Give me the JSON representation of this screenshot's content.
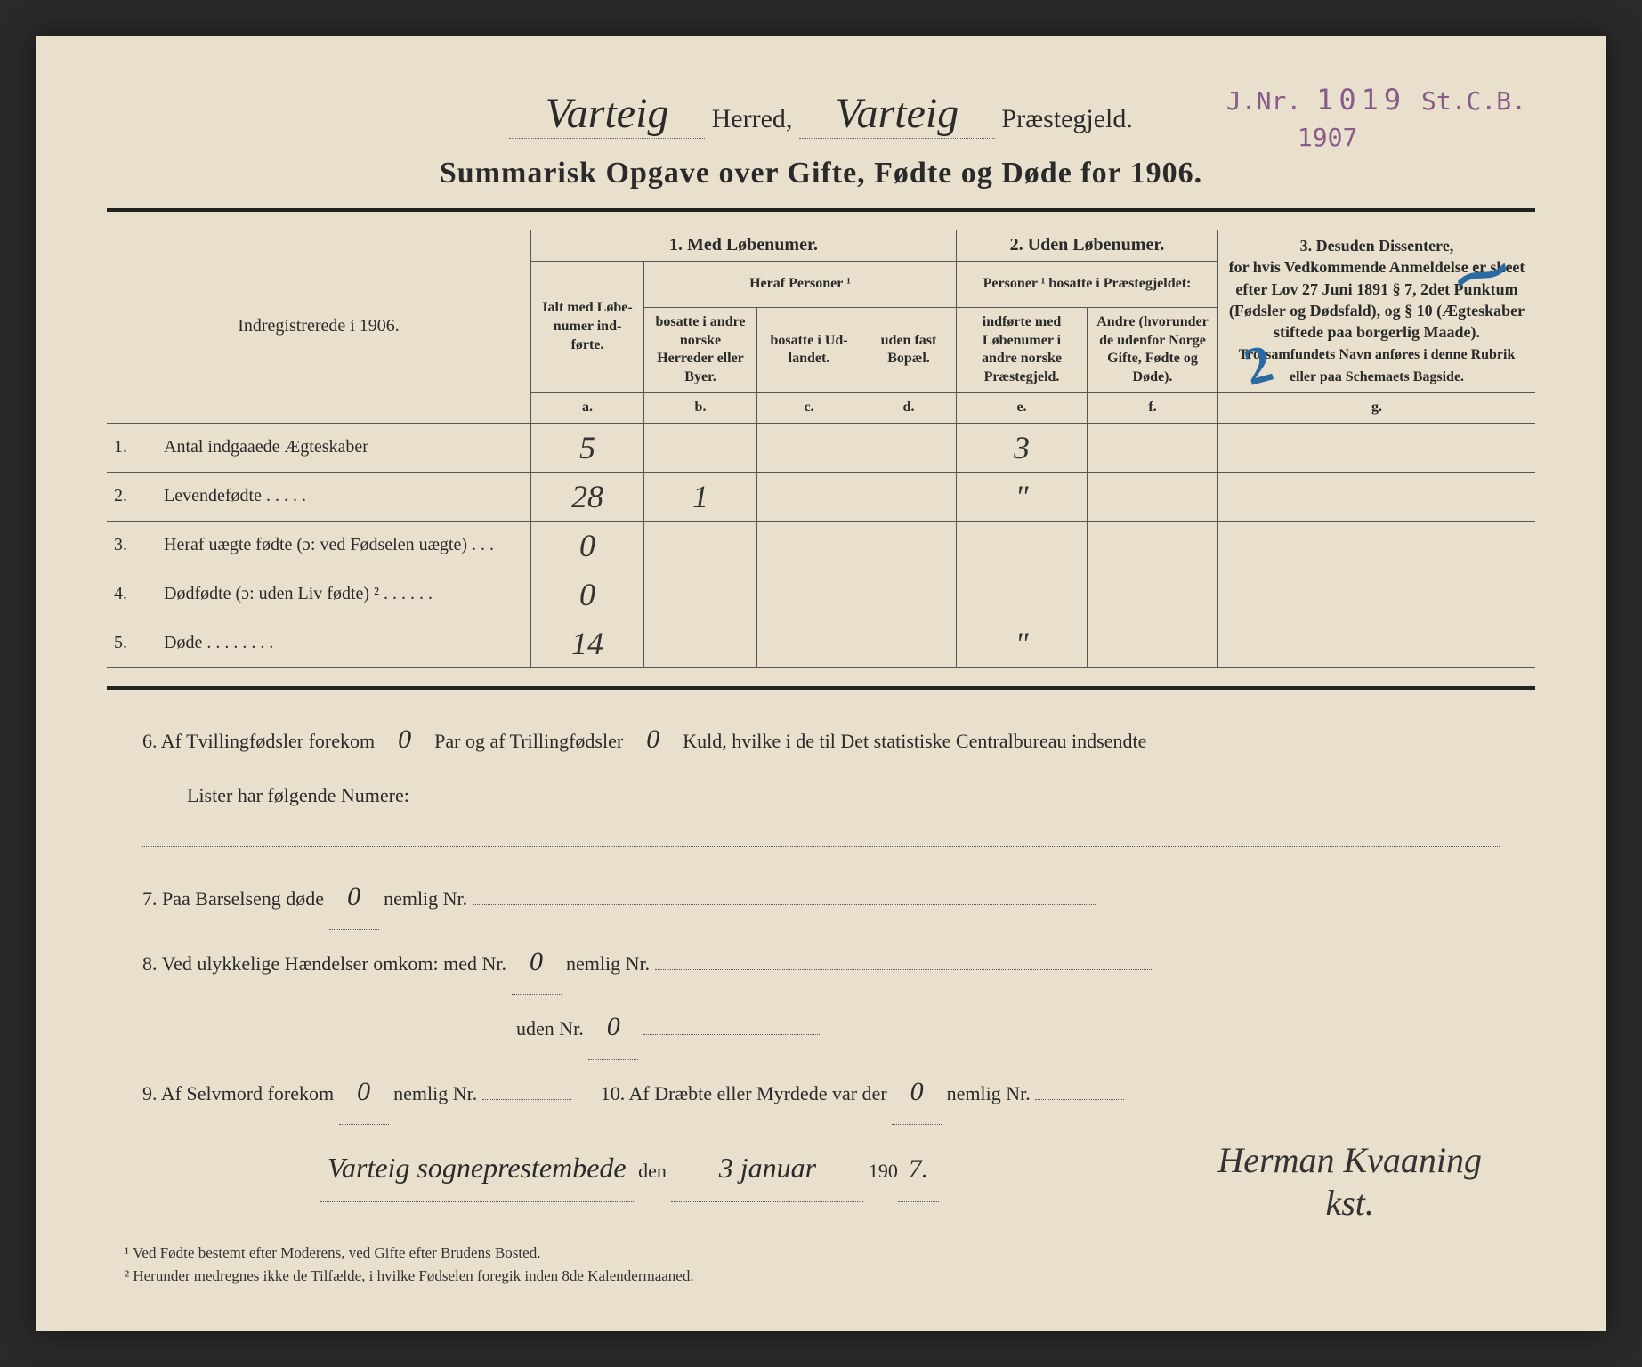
{
  "stamp": {
    "prefix": "J.Nr.",
    "number": "1019",
    "suffix": "St.C.B.",
    "year": "1907"
  },
  "header": {
    "herred_value": "Varteig",
    "herred_label": "Herred,",
    "praestegjeld_value": "Varteig",
    "praestegjeld_label": "Præstegjeld."
  },
  "title": "Summarisk Opgave over Gifte, Fødte og Døde for 1906.",
  "corner_label": "Indregistrerede i 1906.",
  "columns": {
    "section1": "1.  Med Løbenumer.",
    "section2": "2. Uden Løbenumer.",
    "section3_title": "3.  Desuden Dissentere,",
    "section3_body": "for hvis Vedkommende Anmeldelse er skeet efter Lov 27 Juni 1891 § 7, 2det Punktum (Fødsler og Dødsfald), og § 10 (Ægteskaber stiftede paa borgerlig Maade).",
    "section3_small": "Trossamfundets Navn anføres i denne Rubrik eller paa Schemaets Bagside.",
    "ialt": "Ialt med Løbe-numer ind-førte.",
    "heraf": "Heraf Personer ¹",
    "b": "bosatte i andre norske Herreder eller Byer.",
    "c": "bosatte i Ud-landet.",
    "d": "uden fast Bopæl.",
    "pers2": "Personer ¹ bosatte i Præstegjeldet:",
    "e": "indførte med Løbenumer i andre norske Præstegjeld.",
    "f": "Andre (hvorunder de udenfor Norge Gifte, Fødte og Døde).",
    "letters": {
      "a": "a.",
      "b": "b.",
      "c": "c.",
      "d": "d.",
      "e": "e.",
      "f": "f.",
      "g": "g."
    }
  },
  "rows": [
    {
      "num": "1.",
      "label": "Antal indgaaede Ægteskaber",
      "a": "5",
      "b": "",
      "c": "",
      "d": "",
      "e": "3",
      "f": "",
      "g": ""
    },
    {
      "num": "2.",
      "label": "Levendefødte  .  .  .  .  .",
      "a": "28",
      "b": "1",
      "c": "",
      "d": "",
      "e": "\"",
      "f": "",
      "g": ""
    },
    {
      "num": "3.",
      "label": "Heraf uægte fødte (ɔ: ved Fødselen uægte)  .  .  .",
      "a": "0",
      "b": "",
      "c": "",
      "d": "",
      "e": "",
      "f": "",
      "g": ""
    },
    {
      "num": "4.",
      "label": "Dødfødte (ɔ: uden Liv fødte) ²  .  .  .  .  .  .",
      "a": "0",
      "b": "",
      "c": "",
      "d": "",
      "e": "",
      "f": "",
      "g": ""
    },
    {
      "num": "5.",
      "label": "Døde  .  .  .  .  .  .  .  .",
      "a": "14",
      "b": "",
      "c": "",
      "d": "",
      "e": "\"",
      "f": "",
      "g": ""
    }
  ],
  "below": {
    "line6a": "6.   Af Tvillingfødsler forekom",
    "line6_twins": "0",
    "line6b": "Par og af Trillingfødsler",
    "line6_triplets": "0",
    "line6c": "Kuld, hvilke i de til Det statistiske Centralbureau indsendte",
    "line6d": "Lister har følgende Numere:",
    "line7a": "7.   Paa Barselseng døde",
    "line7_val": "0",
    "line7b": "nemlig Nr.",
    "line8a": "8.   Ved ulykkelige Hændelser omkom:  med Nr.",
    "line8_med": "0",
    "line8b": "nemlig Nr.",
    "line8c": "uden Nr.",
    "line8_uden": "0",
    "line9a": "9.   Af Selvmord forekom",
    "line9_val": "0",
    "line9b": "nemlig Nr.",
    "line10a": "10.  Af Dræbte eller Myrdede var der",
    "line10_val": "0",
    "line10b": "nemlig Nr."
  },
  "sig": {
    "place": "Varteig sogneprestembede",
    "den": "den",
    "date": "3 januar",
    "year_prefix": "190",
    "year_suffix": "7.",
    "name": "Herman Kvaaning",
    "role": "kst."
  },
  "footnotes": {
    "f1": "¹ Ved Fødte bestemt efter Moderens, ved Gifte efter Brudens Bosted.",
    "f2": "² Herunder medregnes ikke de Tilfælde, i hvilke Fødselen foregik inden 8de Kalendermaaned."
  }
}
